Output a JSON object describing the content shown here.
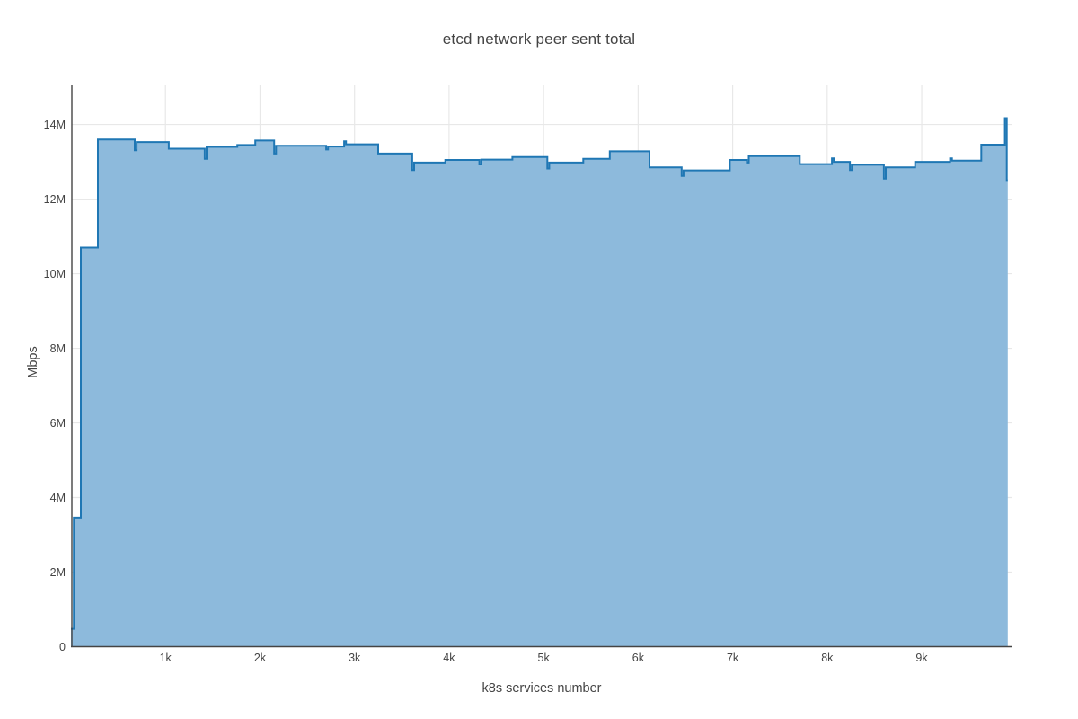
{
  "chart_data": {
    "type": "area",
    "line_shape": "hv",
    "title": "etcd network peer sent total",
    "xlabel": "k8s services number",
    "ylabel": "Mbps",
    "xlim": [
      0,
      9950
    ],
    "ylim": [
      0,
      15050000
    ],
    "grid": true,
    "legend": "none",
    "xticks": {
      "values": [
        1000,
        2000,
        3000,
        4000,
        5000,
        6000,
        7000,
        8000,
        9000
      ],
      "labels": [
        "1k",
        "2k",
        "3k",
        "4k",
        "5k",
        "6k",
        "7k",
        "8k",
        "9k"
      ]
    },
    "yticks": {
      "values": [
        0,
        2000000,
        4000000,
        6000000,
        8000000,
        10000000,
        12000000,
        14000000
      ],
      "labels": [
        "0",
        "2M",
        "4M",
        "6M",
        "8M",
        "10M",
        "12M",
        "14M"
      ]
    },
    "series": [
      {
        "x": [
          0,
          30,
          105,
          285,
          675,
          695,
          1035,
          1415,
          1435,
          1760,
          1950,
          2150,
          2170,
          2700,
          2720,
          2890,
          2910,
          3250,
          3610,
          3630,
          3960,
          4320,
          4340,
          4670,
          5040,
          5060,
          5420,
          5700,
          6120,
          6460,
          6480,
          6970,
          7150,
          7170,
          7710,
          8050,
          8070,
          8240,
          8260,
          8600,
          8620,
          8930,
          9300,
          9320,
          9630,
          9880,
          9900
        ],
        "y": [
          480000,
          3460000,
          10700000,
          13600000,
          13310000,
          13530000,
          13350000,
          13080000,
          13400000,
          13450000,
          13570000,
          13220000,
          13430000,
          13330000,
          13410000,
          13550000,
          13470000,
          13220000,
          12780000,
          12980000,
          13050000,
          12930000,
          13060000,
          13130000,
          12820000,
          12980000,
          13080000,
          13280000,
          12850000,
          12620000,
          12770000,
          13050000,
          12980000,
          13150000,
          12940000,
          13090000,
          13000000,
          12780000,
          12920000,
          12550000,
          12850000,
          13000000,
          13090000,
          13030000,
          13460000,
          14170000,
          12510000
        ],
        "x_end": 9910
      }
    ],
    "colors": {
      "line": "#1f77b4",
      "fill": "#8dbadc",
      "grid": "#e8e8e8",
      "axis_line": "#444444",
      "text": "#444444",
      "background": "#ffffff"
    }
  }
}
